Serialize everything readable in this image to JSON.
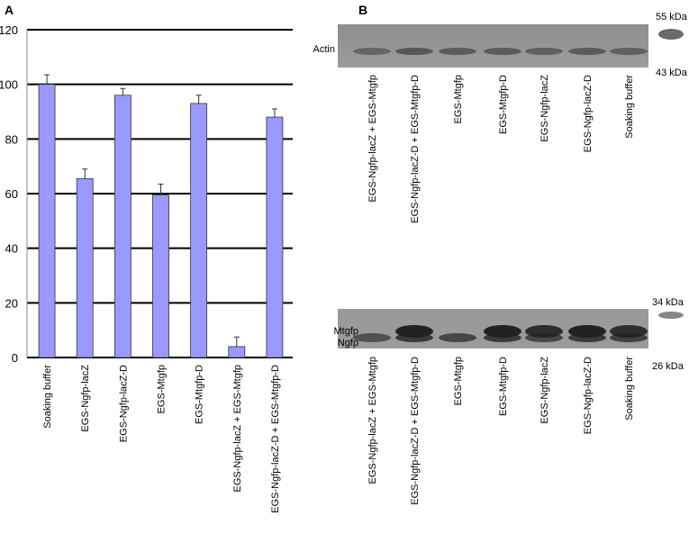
{
  "chart_data": {
    "type": "bar",
    "panel_label": "A",
    "categories": [
      "Soaking buffer",
      "EGS-Ngfp-lacZ",
      "EGS-Ngfp-lacZ-D",
      "EGS-Mtgfp",
      "EGS-Mtgfp-D",
      "EGS-Ngfp-lacZ + EGS-Mtgfp",
      "EGS-Ngfp-lacZ-D + EGS-Mtgfp-D"
    ],
    "values": [
      100,
      65.5,
      96,
      59.5,
      93,
      4,
      88
    ],
    "errors": [
      3.5,
      3.5,
      2.5,
      4,
      3,
      3.5,
      3
    ],
    "color": "#9999ff",
    "ylim": [
      0,
      120
    ],
    "yticks": [
      0,
      20,
      40,
      60,
      80,
      100,
      120
    ],
    "grid": true
  },
  "blots": {
    "panel_label": "B",
    "top": {
      "band_label": "Actin",
      "upper_marker": "55 kDa",
      "lower_marker": "43 kDa",
      "lanes": [
        "EGS-Ngfp-lacZ + EGS-Mtgfp",
        "EGS-Ngfp-lacZ-D + EGS-Mtgfp-D",
        "EGS-Mtgfp",
        "EGS-Mtgfp-D",
        "EGS-Ngfp-lacZ",
        "EGS-Ngfp-lacZ-D",
        "Soaking buffer"
      ]
    },
    "bottom": {
      "band_labels": [
        "Mtgfp",
        "Ngfp"
      ],
      "upper_marker": "34 kDa",
      "lower_marker": "26 kDa",
      "lanes": [
        "EGS-Ngfp-lacZ + EGS-Mtgfp",
        "EGS-Ngfp-lacZ-D + EGS-Mtgfp-D",
        "EGS-Mtgfp",
        "EGS-Mtgfp-D",
        "EGS-Ngfp-lacZ",
        "EGS-Ngfp-lacZ-D",
        "Soaking buffer"
      ]
    }
  }
}
